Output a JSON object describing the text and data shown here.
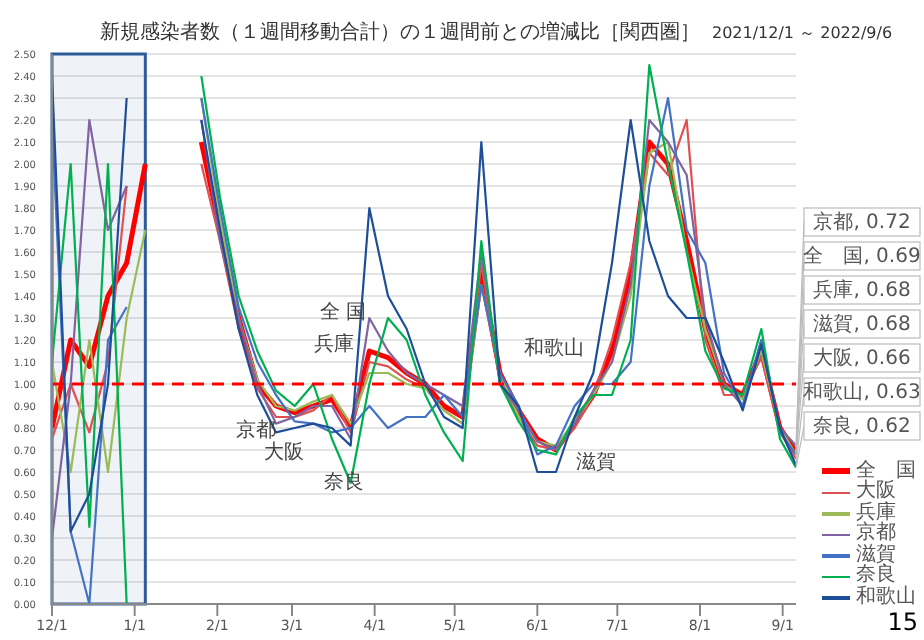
{
  "chart_data": {
    "type": "line",
    "title": "新規感染者数（１週間移動合計）の１週間前との増減比［関西圏］",
    "subtitle": "2021/12/1 ～ 2022/9/6",
    "x": [
      "2021-12-01",
      "2021-12-08",
      "2021-12-15",
      "2021-12-22",
      "2021-12-29",
      "2022-01-05",
      "2022-01-12",
      "2022-01-19",
      "2022-01-26",
      "2022-02-02",
      "2022-02-09",
      "2022-02-16",
      "2022-02-23",
      "2022-03-02",
      "2022-03-09",
      "2022-03-16",
      "2022-03-23",
      "2022-03-30",
      "2022-04-06",
      "2022-04-13",
      "2022-04-20",
      "2022-04-27",
      "2022-05-04",
      "2022-05-11",
      "2022-05-18",
      "2022-05-25",
      "2022-06-01",
      "2022-06-08",
      "2022-06-15",
      "2022-06-22",
      "2022-06-29",
      "2022-07-06",
      "2022-07-13",
      "2022-07-20",
      "2022-07-27",
      "2022-08-03",
      "2022-08-10",
      "2022-08-17",
      "2022-08-24",
      "2022-08-31",
      "2022-09-06"
    ],
    "series": [
      {
        "name": "全　国",
        "color": "#ff0000",
        "values": [
          0.8,
          1.2,
          1.08,
          1.4,
          1.55,
          2.0,
          null,
          null,
          2.1,
          1.7,
          1.3,
          1.0,
          0.9,
          0.87,
          0.9,
          0.93,
          0.8,
          1.15,
          1.12,
          1.05,
          1.0,
          0.9,
          0.85,
          1.5,
          1.05,
          0.88,
          0.75,
          0.7,
          0.82,
          0.95,
          1.15,
          1.5,
          2.1,
          2.0,
          1.65,
          1.25,
          1.0,
          0.95,
          1.15,
          0.8,
          0.69
        ]
      },
      {
        "name": "大阪",
        "color": "#e05050",
        "values": [
          0.75,
          1.0,
          0.78,
          1.1,
          1.9,
          null,
          null,
          null,
          2.0,
          1.65,
          1.25,
          0.98,
          0.85,
          0.85,
          0.88,
          0.95,
          0.78,
          1.1,
          1.08,
          1.02,
          0.98,
          0.88,
          0.82,
          1.55,
          1.0,
          0.85,
          0.72,
          0.7,
          0.8,
          0.95,
          1.2,
          1.55,
          2.05,
          1.95,
          2.2,
          1.2,
          0.95,
          0.95,
          1.12,
          0.78,
          0.66
        ]
      },
      {
        "name": "兵庫",
        "color": "#9bbb59",
        "values": [
          1.1,
          0.6,
          1.2,
          0.6,
          1.3,
          1.7,
          null,
          null,
          2.3,
          1.75,
          1.3,
          1.02,
          0.9,
          0.88,
          0.92,
          0.95,
          0.82,
          1.05,
          1.05,
          1.0,
          0.98,
          0.88,
          0.82,
          1.45,
          1.05,
          0.85,
          0.74,
          0.72,
          0.83,
          0.95,
          1.1,
          1.4,
          2.05,
          2.1,
          1.6,
          1.25,
          1.0,
          0.93,
          1.15,
          0.8,
          0.68
        ]
      },
      {
        "name": "京都",
        "color": "#8064a2",
        "values": [
          0.3,
          1.0,
          2.2,
          1.7,
          1.9,
          null,
          null,
          null,
          2.2,
          1.65,
          1.3,
          1.0,
          0.82,
          0.85,
          0.9,
          0.9,
          0.75,
          1.3,
          1.15,
          1.05,
          1.0,
          0.95,
          0.9,
          1.6,
          1.0,
          0.88,
          0.74,
          0.7,
          0.82,
          0.97,
          1.1,
          1.45,
          2.2,
          2.1,
          1.95,
          1.3,
          1.0,
          0.9,
          1.2,
          0.8,
          0.72
        ]
      },
      {
        "name": "滋賀",
        "color": "#4472c4",
        "values": [
          2.2,
          0.33,
          0.0,
          1.2,
          1.35,
          null,
          null,
          null,
          2.3,
          1.8,
          1.35,
          1.1,
          0.95,
          0.83,
          0.82,
          0.78,
          0.8,
          0.9,
          0.8,
          0.85,
          0.85,
          0.95,
          0.85,
          1.45,
          1.05,
          0.9,
          0.68,
          0.72,
          0.9,
          1.0,
          1.0,
          1.1,
          1.9,
          2.3,
          1.7,
          1.55,
          1.05,
          0.9,
          1.2,
          0.78,
          0.68
        ]
      },
      {
        "name": "奈良",
        "color": "#00b050",
        "values": [
          1.1,
          2.0,
          0.35,
          2.0,
          0.0,
          null,
          null,
          null,
          2.4,
          1.85,
          1.4,
          1.15,
          0.97,
          0.9,
          1.0,
          0.75,
          0.55,
          1.0,
          1.3,
          1.2,
          0.95,
          0.78,
          0.65,
          1.65,
          1.0,
          0.83,
          0.7,
          0.68,
          0.85,
          0.95,
          0.95,
          1.2,
          2.45,
          2.0,
          1.6,
          1.15,
          0.98,
          0.95,
          1.25,
          0.75,
          0.62
        ]
      },
      {
        "name": "和歌山",
        "color": "#1f4e99",
        "values": [
          2.4,
          0.33,
          0.5,
          1.0,
          2.3,
          null,
          null,
          null,
          2.2,
          1.7,
          1.25,
          0.95,
          0.78,
          0.8,
          0.82,
          0.8,
          0.72,
          1.8,
          1.4,
          1.25,
          1.0,
          0.85,
          0.8,
          2.1,
          1.0,
          0.9,
          0.6,
          0.6,
          0.85,
          1.05,
          1.55,
          2.2,
          1.65,
          1.4,
          1.3,
          1.3,
          1.1,
          0.88,
          1.18,
          0.8,
          0.63
        ]
      }
    ],
    "xlim": [
      "2021-12-01",
      "2022-09-06"
    ],
    "ylim": [
      0,
      2.5
    ],
    "yticks": [
      {
        "value": 0,
        "label": "0.00"
      },
      {
        "value": 0.1,
        "label": "0.10"
      },
      {
        "value": 0.2,
        "label": "0.20"
      },
      {
        "value": 0.3,
        "label": "0.30"
      },
      {
        "value": 0.4,
        "label": "0.40"
      },
      {
        "value": 0.5,
        "label": "0.50"
      },
      {
        "value": 0.6,
        "label": "0.60"
      },
      {
        "value": 0.7,
        "label": "0.70"
      },
      {
        "value": 0.8,
        "label": "0.80"
      },
      {
        "value": 0.9,
        "label": "0.90"
      },
      {
        "value": 1,
        "label": "1.00"
      },
      {
        "value": 1.1,
        "label": "1.10"
      },
      {
        "value": 1.2,
        "label": "1.20"
      },
      {
        "value": 1.3,
        "label": "1.30"
      },
      {
        "value": 1.4,
        "label": "1.40"
      },
      {
        "value": 1.5,
        "label": "1.50"
      },
      {
        "value": 1.6,
        "label": "1.60"
      },
      {
        "value": 1.7,
        "label": "1.70"
      },
      {
        "value": 1.8,
        "label": "1.80"
      },
      {
        "value": 1.9,
        "label": "1.90"
      },
      {
        "value": 2,
        "label": "2.00"
      },
      {
        "value": 2.1,
        "label": "2.10"
      },
      {
        "value": 2.2,
        "label": "2.20"
      },
      {
        "value": 2.3,
        "label": "2.30"
      },
      {
        "value": 2.4,
        "label": "2.40"
      },
      {
        "value": 2.5,
        "label": "2.50"
      }
    ],
    "xticks": [
      {
        "value": "2021-12-01",
        "label": "12/1"
      },
      {
        "value": "2022-01-01",
        "label": "1/1"
      },
      {
        "value": "2022-02-01",
        "label": "2/1"
      },
      {
        "value": "2022-03-01",
        "label": "3/1"
      },
      {
        "value": "2022-04-01",
        "label": "4/1"
      },
      {
        "value": "2022-05-01",
        "label": "5/1"
      },
      {
        "value": "2022-06-01",
        "label": "6/1"
      },
      {
        "value": "2022-07-01",
        "label": "7/1"
      },
      {
        "value": "2022-08-01",
        "label": "8/1"
      },
      {
        "value": "2022-09-01",
        "label": "9/1"
      }
    ],
    "grid": "y",
    "legend": "bottom right",
    "ref_lines": [
      {
        "axis": "y",
        "value": 1,
        "color": "#ff0000",
        "line_style": "dashed"
      }
    ],
    "bands": [
      {
        "axis": "x",
        "from": "2021-12-01",
        "to": "2022-01-05",
        "color": "#2e5c9a"
      }
    ],
    "annotations": [
      "全 国",
      "兵庫",
      "京都",
      "大阪",
      "奈良",
      "和歌山",
      "滋賀",
      {
        "text": "京都, 0.72",
        "x": "2022-09-06",
        "y": 0.72
      },
      {
        "text": "全　国, 0.69",
        "x": "2022-09-06",
        "y": 0.69
      },
      {
        "text": "兵庫, 0.68",
        "x": "2022-09-06",
        "y": 0.68
      },
      {
        "text": "滋賀, 0.68",
        "x": "2022-09-06",
        "y": 0.68
      },
      {
        "text": "大阪, 0.66",
        "x": "2022-09-06",
        "y": 0.66
      },
      {
        "text": "和歌山, 0.63",
        "x": "2022-09-06",
        "y": 0.63
      },
      {
        "text": "奈良, 0.62",
        "x": "2022-09-06",
        "y": 0.62
      },
      "15"
    ]
  }
}
